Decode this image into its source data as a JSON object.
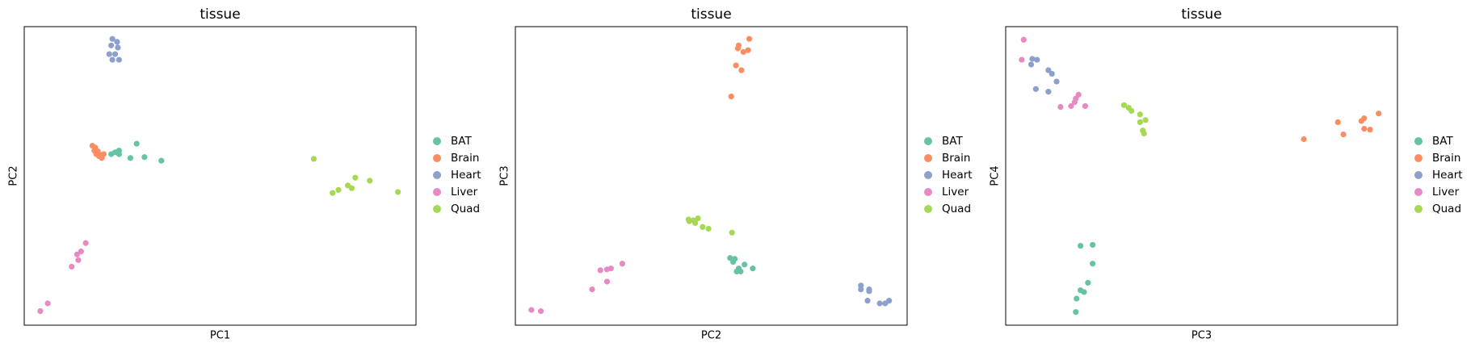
{
  "chart_data": [
    {
      "type": "scatter",
      "title": "tissue",
      "x_label": "PC1",
      "y_label": "PC2",
      "xlim": [
        0,
        100
      ],
      "ylim": [
        0,
        100
      ],
      "legend": "right",
      "series": [
        {
          "name": "BAT",
          "color": "#66c2a5",
          "x": [
            22.2,
            23.2,
            24.2,
            24.2,
            28.7,
            27.1,
            30.7,
            35.0
          ],
          "y": [
            57.3,
            57.9,
            58.5,
            57.3,
            60.8,
            56.0,
            56.3,
            55.1
          ]
        },
        {
          "name": "Brain",
          "color": "#fc8d62",
          "x": [
            17.4,
            18.1,
            17.9,
            18.8,
            18.4,
            19.3,
            20.3,
            19.8,
            19.1
          ],
          "y": [
            60.1,
            59.5,
            58.5,
            58.2,
            57.3,
            57.0,
            57.3,
            56.0,
            56.6
          ]
        },
        {
          "name": "Heart",
          "color": "#8da0cb",
          "x": [
            22.5,
            23.7,
            22.2,
            23.9,
            21.7,
            23.2,
            22.5,
            24.2
          ],
          "y": [
            95.9,
            94.9,
            93.7,
            93.0,
            90.8,
            90.8,
            88.9,
            88.9
          ]
        },
        {
          "name": "Liver",
          "color": "#e78ac3",
          "x": [
            15.7,
            14.5,
            13.5,
            13.8,
            12.1,
            6.0,
            4.1
          ],
          "y": [
            27.5,
            24.7,
            23.7,
            21.8,
            19.6,
            7.3,
            4.7
          ]
        },
        {
          "name": "Quad",
          "color": "#a6d854",
          "x": [
            73.9,
            78.7,
            80.2,
            82.6,
            83.6,
            84.5,
            88.2,
            95.4
          ],
          "y": [
            55.7,
            44.3,
            45.3,
            46.8,
            45.9,
            49.4,
            48.4,
            44.6
          ]
        }
      ]
    },
    {
      "type": "scatter",
      "title": "tissue",
      "x_label": "PC2",
      "y_label": "PC3",
      "xlim": [
        0,
        100
      ],
      "ylim": [
        0,
        100
      ],
      "legend": "right",
      "series": [
        {
          "name": "BAT",
          "color": "#66c2a5",
          "x": [
            54.8,
            56.0,
            55.6,
            58.5,
            60.6,
            57.0,
            56.5,
            57.5
          ],
          "y": [
            22.5,
            22.2,
            21.2,
            20.3,
            19.0,
            19.0,
            18.0,
            18.0
          ]
        },
        {
          "name": "Brain",
          "color": "#fc8d62",
          "x": [
            59.7,
            57.0,
            56.8,
            59.4,
            58.2,
            56.3,
            57.7,
            55.1
          ],
          "y": [
            95.9,
            93.7,
            92.7,
            92.1,
            91.5,
            87.0,
            85.4,
            76.6
          ]
        },
        {
          "name": "Heart",
          "color": "#8da0cb",
          "x": [
            88.2,
            88.2,
            90.3,
            90.3,
            89.9,
            93.0,
            94.4,
            95.4
          ],
          "y": [
            13.3,
            12.0,
            12.0,
            11.4,
            8.2,
            7.3,
            7.3,
            8.2
          ]
        },
        {
          "name": "Liver",
          "color": "#e78ac3",
          "x": [
            27.3,
            24.4,
            23.4,
            21.7,
            23.4,
            19.6,
            4.1,
            6.5
          ],
          "y": [
            20.6,
            19.0,
            18.7,
            18.4,
            14.6,
            12.0,
            5.1,
            4.7
          ]
        },
        {
          "name": "Quad",
          "color": "#a6d854",
          "x": [
            46.6,
            45.4,
            44.2,
            44.4,
            45.9,
            47.8,
            49.3,
            55.3
          ],
          "y": [
            35.8,
            35.1,
            35.4,
            34.8,
            34.2,
            32.9,
            32.3,
            31.0
          ]
        }
      ]
    },
    {
      "type": "scatter",
      "title": "tissue",
      "x_label": "PC3",
      "y_label": "PC4",
      "xlim": [
        0,
        100
      ],
      "ylim": [
        0,
        100
      ],
      "legend": "right",
      "series": [
        {
          "name": "BAT",
          "color": "#66c2a5",
          "x": [
            19.1,
            22.2,
            22.2,
            21.0,
            19.1,
            20.0,
            18.1,
            17.9
          ],
          "y": [
            26.6,
            26.9,
            20.6,
            14.2,
            11.7,
            11.1,
            8.9,
            4.4
          ]
        },
        {
          "name": "Brain",
          "color": "#fc8d62",
          "x": [
            84.8,
            91.5,
            95.2,
            90.8,
            91.5,
            93.0,
            86.2,
            76.1
          ],
          "y": [
            68.0,
            69.3,
            70.9,
            68.4,
            65.8,
            65.5,
            63.9,
            62.3
          ]
        },
        {
          "name": "Heart",
          "color": "#8da0cb",
          "x": [
            6.8,
            8.0,
            6.5,
            10.9,
            11.8,
            13.0,
            7.7,
            10.9
          ],
          "y": [
            89.2,
            88.9,
            87.3,
            85.4,
            84.2,
            81.6,
            79.1,
            78.2
          ]
        },
        {
          "name": "Liver",
          "color": "#e78ac3",
          "x": [
            4.6,
            4.1,
            18.6,
            17.9,
            17.6,
            16.7,
            20.3,
            14.0
          ],
          "y": [
            95.6,
            88.9,
            77.2,
            75.9,
            74.7,
            73.4,
            73.4,
            73.1
          ]
        },
        {
          "name": "Quad",
          "color": "#a6d854",
          "x": [
            30.2,
            31.4,
            32.1,
            34.3,
            35.7,
            34.3,
            35.0,
            35.3
          ],
          "y": [
            73.7,
            72.8,
            71.8,
            70.6,
            68.7,
            68.0,
            65.2,
            64.2
          ]
        }
      ]
    }
  ]
}
